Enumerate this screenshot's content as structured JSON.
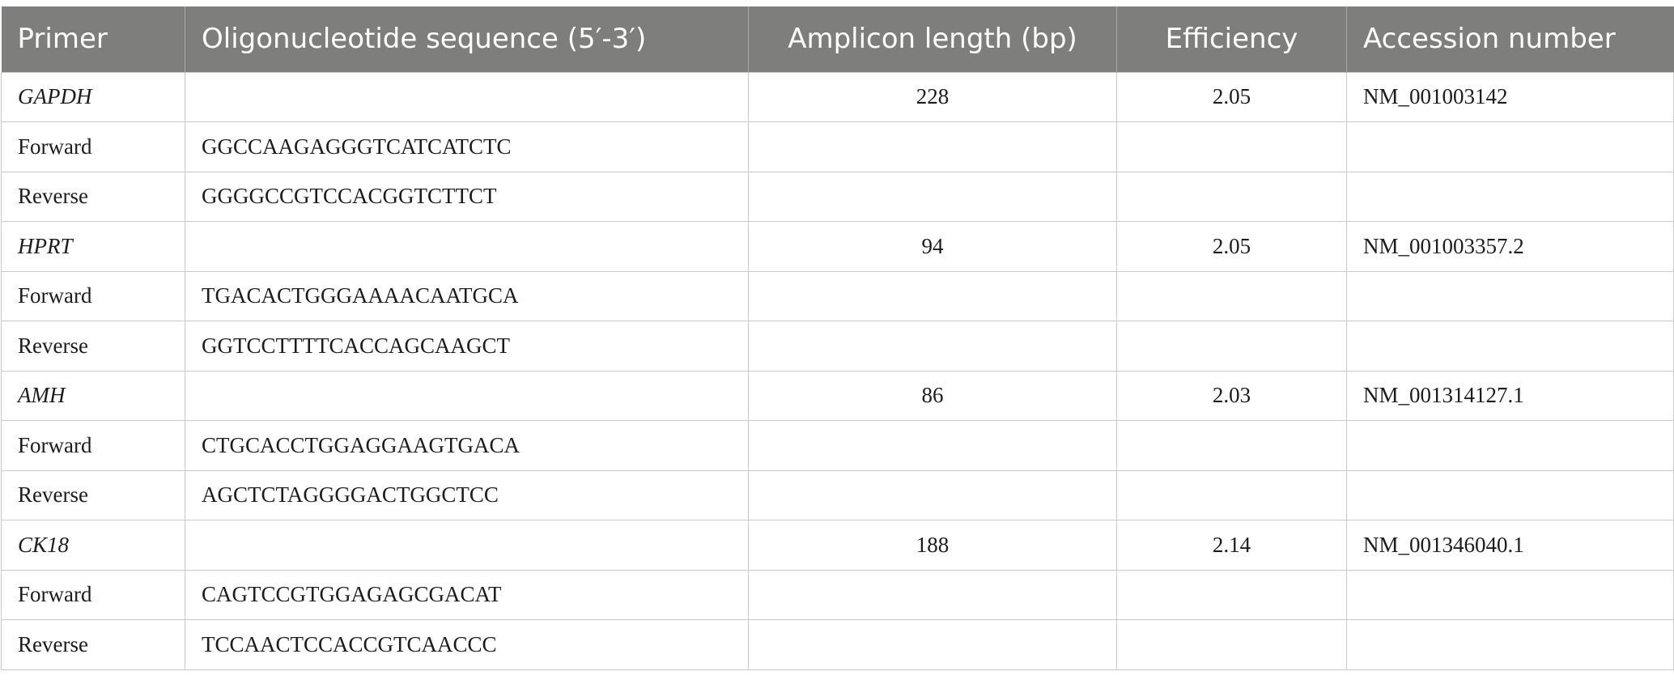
{
  "table": {
    "headers": [
      "Primer",
      "Oligonucleotide sequence (5′-3′)",
      "Amplicon length (bp)",
      "Efficiency",
      "Accession number"
    ],
    "rows": [
      {
        "primer": "GAPDH",
        "sequence": "",
        "amplicon": "228",
        "efficiency": "2.05",
        "accession": "NM_001003142"
      },
      {
        "primer": "Forward",
        "sequence": "GGCCAAGAGGGTCATCATCTC",
        "amplicon": "",
        "efficiency": "",
        "accession": ""
      },
      {
        "primer": "Reverse",
        "sequence": "GGGGCCGTCCACGGTCTTCT",
        "amplicon": "",
        "efficiency": "",
        "accession": ""
      },
      {
        "primer": "HPRT",
        "sequence": "",
        "amplicon": "94",
        "efficiency": "2.05",
        "accession": "NM_001003357.2"
      },
      {
        "primer": "Forward",
        "sequence": "TGACACTGGGAAAACAATGCA",
        "amplicon": "",
        "efficiency": "",
        "accession": ""
      },
      {
        "primer": "Reverse",
        "sequence": "GGTCCTTTTCACCAGCAAGCT",
        "amplicon": "",
        "efficiency": "",
        "accession": ""
      },
      {
        "primer": "AMH",
        "sequence": "",
        "amplicon": "86",
        "efficiency": "2.03",
        "accession": "NM_001314127.1"
      },
      {
        "primer": "Forward",
        "sequence": "CTGCACCTGGAGGAAGTGACA",
        "amplicon": "",
        "efficiency": "",
        "accession": ""
      },
      {
        "primer": "Reverse",
        "sequence": "AGCTCTAGGGGACTGGCTCC",
        "amplicon": "",
        "efficiency": "",
        "accession": ""
      },
      {
        "primer": "CK18",
        "sequence": "",
        "amplicon": "188",
        "efficiency": "2.14",
        "accession": "NM_001346040.1"
      },
      {
        "primer": "Forward",
        "sequence": "CAGTCCGTGGAGAGCGACAT",
        "amplicon": "",
        "efficiency": "",
        "accession": ""
      },
      {
        "primer": "Reverse",
        "sequence": "TCCAACTCCACCGTCAACCC",
        "amplicon": "",
        "efficiency": "",
        "accession": ""
      }
    ]
  }
}
